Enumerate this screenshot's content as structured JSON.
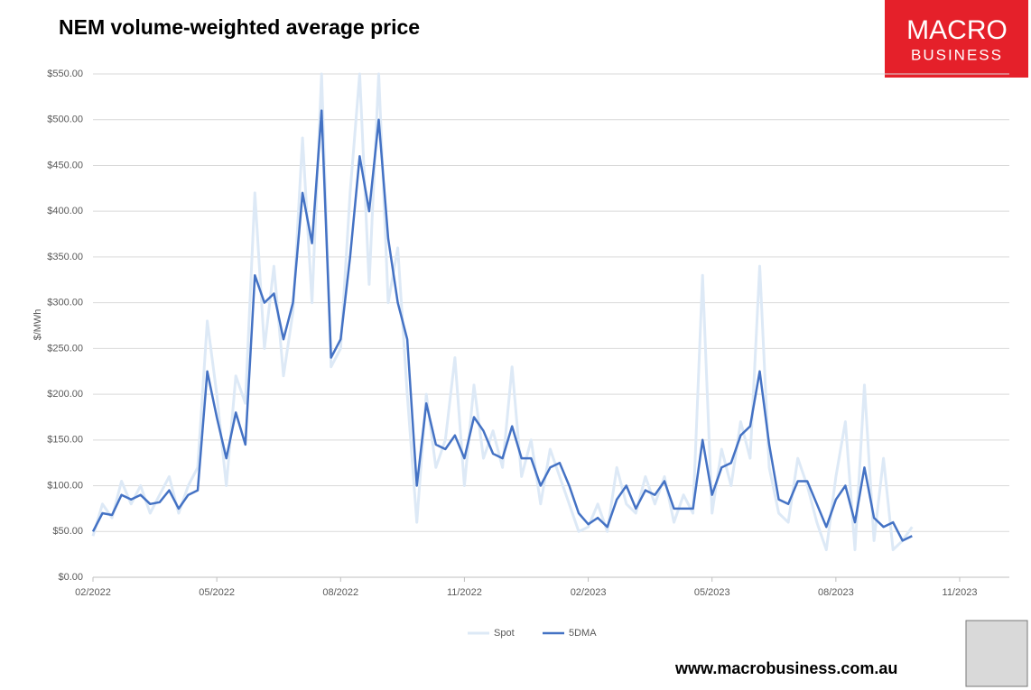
{
  "chart_data": {
    "type": "line",
    "title": "NEM volume-weighted average price",
    "y_label": "$/MWh",
    "logo": {
      "line1": "MACRO",
      "line2": "BUSINESS"
    },
    "website": "www.macrobusiness.com.au",
    "categories": [
      "02/2022",
      null,
      null,
      null,
      null,
      null,
      null,
      null,
      null,
      null,
      null,
      null,
      null,
      "05/2022",
      null,
      null,
      null,
      null,
      null,
      null,
      null,
      null,
      null,
      null,
      null,
      null,
      "08/2022",
      null,
      null,
      null,
      null,
      null,
      null,
      null,
      null,
      null,
      null,
      null,
      null,
      "11/2022",
      null,
      null,
      null,
      null,
      null,
      null,
      null,
      null,
      null,
      null,
      null,
      null,
      "02/2023",
      null,
      null,
      null,
      null,
      null,
      null,
      null,
      null,
      null,
      null,
      null,
      null,
      "05/2023",
      null,
      null,
      null,
      null,
      null,
      null,
      null,
      null,
      null,
      null,
      null,
      null,
      "08/2023",
      null,
      null,
      null,
      null,
      null,
      null,
      null,
      null,
      null,
      null,
      null,
      null,
      "11/2023"
    ],
    "series": [
      {
        "name": "Spot",
        "color": "#dde9f6",
        "width": 3,
        "values": [
          45,
          80,
          65,
          105,
          80,
          100,
          70,
          90,
          110,
          70,
          100,
          120,
          280,
          200,
          100,
          220,
          190,
          420,
          250,
          340,
          220,
          290,
          480,
          300,
          550,
          230,
          250,
          420,
          550,
          320,
          550,
          300,
          360,
          200,
          60,
          200,
          120,
          150,
          240,
          100,
          210,
          130,
          160,
          120,
          230,
          110,
          150,
          80,
          140,
          110,
          80,
          50,
          55,
          80,
          50,
          120,
          80,
          70,
          110,
          80,
          110,
          60,
          90,
          70,
          330,
          70,
          140,
          100,
          170,
          130,
          340,
          120,
          70,
          60,
          130,
          100,
          60,
          30,
          110,
          170,
          30,
          210,
          40,
          130,
          30,
          40,
          55,
          null,
          null,
          null,
          null,
          null
        ]
      },
      {
        "name": "5DMA",
        "color": "#4472c4",
        "width": 2.5,
        "values": [
          50,
          70,
          68,
          90,
          85,
          90,
          80,
          82,
          95,
          75,
          90,
          95,
          225,
          175,
          130,
          180,
          145,
          330,
          300,
          310,
          260,
          300,
          420,
          365,
          510,
          240,
          260,
          350,
          460,
          400,
          500,
          370,
          300,
          260,
          100,
          190,
          145,
          140,
          155,
          130,
          175,
          160,
          135,
          130,
          165,
          130,
          130,
          100,
          120,
          125,
          100,
          70,
          58,
          65,
          55,
          85,
          100,
          75,
          95,
          90,
          105,
          75,
          75,
          75,
          150,
          90,
          120,
          125,
          155,
          165,
          225,
          145,
          85,
          80,
          105,
          105,
          80,
          55,
          85,
          100,
          60,
          120,
          65,
          55,
          60,
          40,
          45,
          null,
          null,
          null,
          null,
          null
        ]
      }
    ],
    "ylim": [
      0,
      550
    ],
    "yticks": [
      {
        "value": 0,
        "label": "$0.00"
      },
      {
        "value": 50,
        "label": "$50.00"
      },
      {
        "value": 100,
        "label": "$100.00"
      },
      {
        "value": 150,
        "label": "$150.00"
      },
      {
        "value": 200,
        "label": "$200.00"
      },
      {
        "value": 250,
        "label": "$250.00"
      },
      {
        "value": 300,
        "label": "$300.00"
      },
      {
        "value": 350,
        "label": "$350.00"
      },
      {
        "value": 400,
        "label": "$400.00"
      },
      {
        "value": 450,
        "label": "$450.00"
      },
      {
        "value": 500,
        "label": "$500.00"
      },
      {
        "value": 550,
        "label": "$550.00"
      }
    ],
    "grid": true,
    "legend": "bottom"
  }
}
